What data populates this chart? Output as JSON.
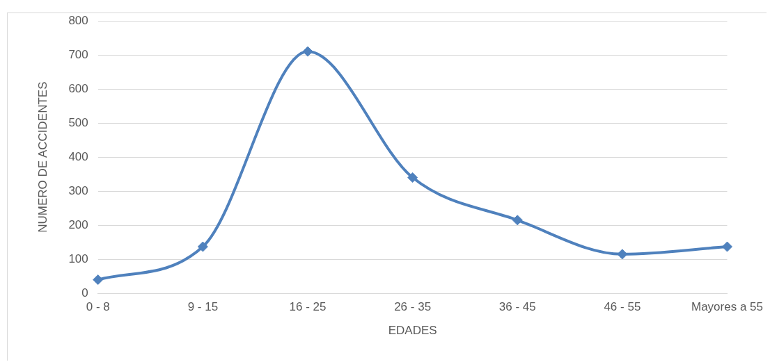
{
  "chart_data": {
    "type": "line",
    "xlabel": "EDADES",
    "ylabel": "NUMERO DE ACCIDENTES",
    "categories": [
      "0 - 8",
      "9 - 15",
      "16 - 25",
      "26 - 35",
      "36 - 45",
      "46 - 55",
      "Mayores a 55"
    ],
    "series": [
      {
        "color": "#4f81bd",
        "values": [
          40,
          137,
          710,
          340,
          215,
          115,
          137
        ]
      }
    ],
    "ylim": [
      0,
      800
    ],
    "yticks": [
      0,
      100,
      200,
      300,
      400,
      500,
      600,
      700,
      800
    ],
    "grid": "y",
    "legend": false,
    "marker": "diamond",
    "line_style": "solid"
  }
}
